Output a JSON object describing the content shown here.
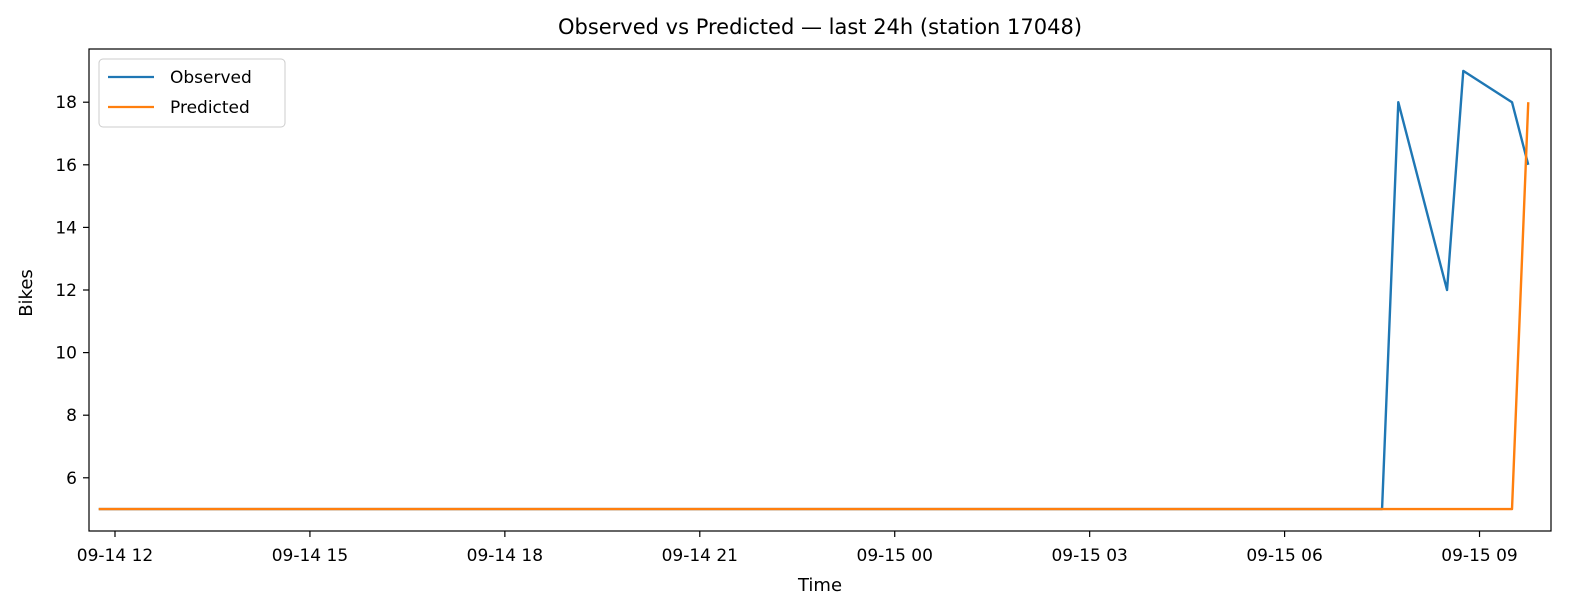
{
  "chart_data": {
    "type": "line",
    "title": "Observed vs Predicted — last 24h (station 17048)",
    "xlabel": "Time",
    "ylabel": "Bikes",
    "x_ticks": [
      "09-14 12",
      "09-14 15",
      "09-14 18",
      "09-14 21",
      "09-15 00",
      "09-15 03",
      "09-15 06",
      "09-15 09"
    ],
    "y_ticks": [
      "6",
      "8",
      "10",
      "12",
      "14",
      "16",
      "18"
    ],
    "xlim": [
      "2024-09-14 11:36",
      "2024-09-15 10:06"
    ],
    "ylim": [
      4.3,
      19.7
    ],
    "grid": false,
    "legend_position": "upper left",
    "series": [
      {
        "name": "Observed",
        "color": "#1f77b4",
        "x": [
          "2024-09-14 11:45",
          "2024-09-15 07:30",
          "2024-09-15 07:45",
          "2024-09-15 08:30",
          "2024-09-15 08:45",
          "2024-09-15 09:30",
          "2024-09-15 09:45"
        ],
        "y": [
          5,
          5,
          18,
          12,
          19,
          18,
          16
        ]
      },
      {
        "name": "Predicted",
        "color": "#ff7f0e",
        "x": [
          "2024-09-14 11:45",
          "2024-09-15 09:30",
          "2024-09-15 09:45"
        ],
        "y": [
          5,
          5,
          18
        ]
      }
    ]
  }
}
